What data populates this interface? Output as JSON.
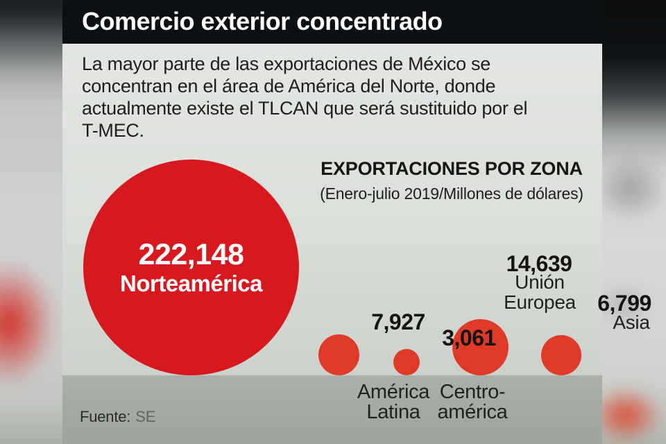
{
  "header": {
    "title": "Comercio exterior concentrado"
  },
  "intro": {
    "text": "La mayor parte de las exportaciones de México se\nconcentran en el área de América del Norte, donde\nactualmente existe el TLCAN que será sustituido por el\nT-MEC."
  },
  "chart": {
    "title": "EXPORTACIONES POR ZONA",
    "subtitle": "(Enero-julio 2019/Millones de dólares)",
    "bubbles": [
      {
        "value": "222,148",
        "label": "Norteamérica"
      },
      {
        "value": "7,927",
        "label": "América\nLatina"
      },
      {
        "value": "3,061",
        "label": "Centro-\namérica"
      },
      {
        "value": "14,639",
        "label": "Unión\nEuropea"
      },
      {
        "value": "6,799",
        "label": "Asia"
      }
    ]
  },
  "footer": {
    "source_label": "Fuente:",
    "source_value": "SE"
  },
  "colors": {
    "title_bar": "#0d1012",
    "panel_bg": "#dbdfda",
    "bottom_band": "#a2a8a0",
    "bubble_large": "#d7191f",
    "bubble_small": "#de3a27",
    "text_dark": "#1e1e1c",
    "text_white": "#ffffff"
  },
  "chart_data": {
    "type": "bubble",
    "title": "EXPORTACIONES POR ZONA",
    "subtitle": "(Enero-julio 2019/Millones de dólares)",
    "period": "Enero-julio 2019",
    "unit": "Millones de dólares",
    "categories": [
      "Norteamérica",
      "América Latina",
      "Centroamérica",
      "Unión Europea",
      "Asia"
    ],
    "values": [
      222148,
      7927,
      3061,
      14639,
      6799
    ],
    "layout_hints": {
      "bubbles_bottom_aligned": true,
      "area_proportional_to_value": true,
      "largest_bubble_label_inside": true
    },
    "source": "SE"
  }
}
